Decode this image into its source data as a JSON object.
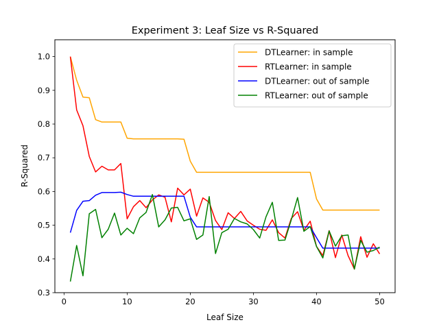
{
  "chart_data": {
    "type": "line",
    "title": "Experiment 3: Leaf Size vs R-Squared",
    "xlabel": "Leaf Size",
    "ylabel": "R-Squared",
    "xlim": [
      -1.45,
      52.45
    ],
    "ylim": [
      0.3,
      1.05
    ],
    "xticks": [
      0,
      10,
      20,
      30,
      40,
      50
    ],
    "yticks": [
      0.3,
      0.4,
      0.5,
      0.6,
      0.7,
      0.8,
      0.9,
      1.0
    ],
    "xtick_labels": [
      "0",
      "10",
      "20",
      "30",
      "40",
      "50"
    ],
    "ytick_labels": [
      "0.3",
      "0.4",
      "0.5",
      "0.6",
      "0.7",
      "0.8",
      "0.9",
      "1.0"
    ],
    "legend_position": "top-right",
    "grid": false,
    "x": [
      1,
      2,
      3,
      4,
      5,
      6,
      7,
      8,
      9,
      10,
      11,
      12,
      13,
      14,
      15,
      16,
      17,
      18,
      19,
      20,
      21,
      22,
      23,
      24,
      25,
      26,
      27,
      28,
      29,
      30,
      31,
      32,
      33,
      34,
      35,
      36,
      37,
      38,
      39,
      40,
      41,
      42,
      43,
      44,
      45,
      46,
      47,
      48,
      49,
      50
    ],
    "series": [
      {
        "name": "DTLearner: in sample",
        "color": "#FFA500",
        "values": [
          1.0,
          0.93,
          0.88,
          0.878,
          0.813,
          0.806,
          0.806,
          0.806,
          0.806,
          0.758,
          0.756,
          0.756,
          0.756,
          0.756,
          0.756,
          0.756,
          0.756,
          0.756,
          0.755,
          0.69,
          0.657,
          0.657,
          0.657,
          0.657,
          0.657,
          0.657,
          0.657,
          0.657,
          0.657,
          0.657,
          0.657,
          0.657,
          0.657,
          0.657,
          0.657,
          0.657,
          0.657,
          0.657,
          0.657,
          0.578,
          0.545,
          0.545,
          0.545,
          0.545,
          0.545,
          0.545,
          0.545,
          0.545,
          0.545,
          0.545
        ]
      },
      {
        "name": "RTLearner: in sample",
        "color": "#FF0000",
        "values": [
          1.0,
          0.842,
          0.795,
          0.704,
          0.658,
          0.675,
          0.664,
          0.664,
          0.683,
          0.519,
          0.555,
          0.573,
          0.552,
          0.575,
          0.59,
          0.583,
          0.51,
          0.61,
          0.59,
          0.607,
          0.527,
          0.581,
          0.568,
          0.514,
          0.487,
          0.537,
          0.52,
          0.541,
          0.513,
          0.5,
          0.488,
          0.485,
          0.516,
          0.478,
          0.462,
          0.52,
          0.54,
          0.485,
          0.512,
          0.437,
          0.41,
          0.484,
          0.404,
          0.471,
          0.41,
          0.37,
          0.466,
          0.405,
          0.445,
          0.415
        ]
      },
      {
        "name": "DTLearner: out of sample",
        "color": "#0000FF",
        "values": [
          0.478,
          0.544,
          0.571,
          0.573,
          0.589,
          0.597,
          0.597,
          0.597,
          0.598,
          0.591,
          0.586,
          0.586,
          0.586,
          0.586,
          0.586,
          0.586,
          0.586,
          0.586,
          0.586,
          0.524,
          0.495,
          0.495,
          0.495,
          0.495,
          0.495,
          0.495,
          0.495,
          0.495,
          0.495,
          0.495,
          0.495,
          0.495,
          0.495,
          0.495,
          0.495,
          0.495,
          0.495,
          0.495,
          0.495,
          0.463,
          0.432,
          0.432,
          0.432,
          0.432,
          0.432,
          0.432,
          0.432,
          0.432,
          0.432,
          0.432
        ]
      },
      {
        "name": "RTLearner: out of sample",
        "color": "#008000",
        "values": [
          0.333,
          0.44,
          0.35,
          0.534,
          0.547,
          0.463,
          0.488,
          0.536,
          0.471,
          0.491,
          0.475,
          0.522,
          0.538,
          0.591,
          0.495,
          0.516,
          0.551,
          0.553,
          0.513,
          0.519,
          0.458,
          0.471,
          0.585,
          0.416,
          0.478,
          0.488,
          0.52,
          0.51,
          0.504,
          0.487,
          0.462,
          0.525,
          0.568,
          0.455,
          0.456,
          0.516,
          0.582,
          0.482,
          0.496,
          0.437,
          0.403,
          0.483,
          0.438,
          0.469,
          0.471,
          0.37,
          0.455,
          0.42,
          0.425,
          0.435
        ]
      }
    ]
  }
}
